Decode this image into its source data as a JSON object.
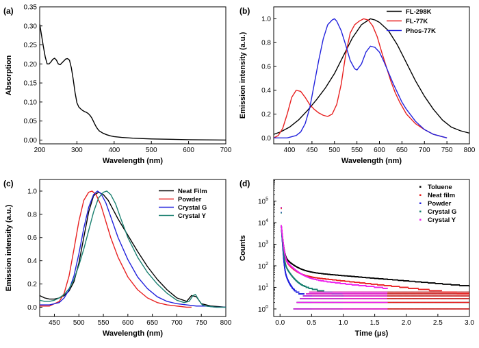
{
  "chart_data": [
    {
      "panel_label": "(a)",
      "type": "line",
      "xlabel": "Wavelength (nm)",
      "ylabel": "Absorption",
      "xlim": [
        200,
        700
      ],
      "ylim": [
        -0.01,
        0.35
      ],
      "xticks": [
        200,
        300,
        400,
        500,
        600,
        700
      ],
      "yticks": [
        0.0,
        0.05,
        0.1,
        0.15,
        0.2,
        0.25,
        0.3,
        0.35
      ],
      "ytick_labels": [
        "0.00",
        "0.05",
        "0.10",
        "0.15",
        "0.20",
        "0.25",
        "0.30",
        "0.35"
      ],
      "legend": null,
      "series": [
        {
          "color": "#000000",
          "x": [
            200,
            205,
            210,
            215,
            220,
            225,
            230,
            235,
            240,
            245,
            250,
            255,
            260,
            265,
            270,
            275,
            280,
            285,
            290,
            295,
            300,
            305,
            310,
            315,
            320,
            325,
            330,
            335,
            340,
            345,
            350,
            355,
            360,
            370,
            380,
            390,
            400,
            420,
            450,
            500,
            550,
            600,
            650,
            700
          ],
          "y": [
            0.305,
            0.275,
            0.245,
            0.218,
            0.2,
            0.2,
            0.205,
            0.212,
            0.215,
            0.21,
            0.2,
            0.198,
            0.203,
            0.208,
            0.213,
            0.214,
            0.21,
            0.19,
            0.16,
            0.125,
            0.098,
            0.087,
            0.082,
            0.078,
            0.075,
            0.073,
            0.07,
            0.065,
            0.058,
            0.048,
            0.038,
            0.03,
            0.024,
            0.018,
            0.014,
            0.011,
            0.009,
            0.007,
            0.005,
            0.003,
            0.002,
            0.001,
            0.0005,
            0.0
          ]
        }
      ]
    },
    {
      "panel_label": "(b)",
      "type": "line",
      "xlabel": "Wavelength (nm)",
      "ylabel": "Emission intensity (a.u.)",
      "xlim": [
        365,
        800
      ],
      "ylim": [
        -0.05,
        1.1
      ],
      "xticks": [
        400,
        450,
        500,
        550,
        600,
        650,
        700,
        750,
        800
      ],
      "yticks": [
        0.0,
        0.2,
        0.4,
        0.6,
        0.8,
        1.0
      ],
      "ytick_labels": [
        "0.0",
        "0.2",
        "0.4",
        "0.6",
        "0.8",
        "1.0"
      ],
      "legend": "top-right",
      "series": [
        {
          "name": "FL-298K",
          "color": "#000000",
          "x": [
            365,
            380,
            400,
            420,
            440,
            460,
            480,
            500,
            520,
            540,
            560,
            580,
            590,
            600,
            620,
            640,
            660,
            680,
            700,
            720,
            740,
            760,
            780,
            800
          ],
          "y": [
            0.03,
            0.05,
            0.09,
            0.15,
            0.23,
            0.32,
            0.42,
            0.54,
            0.69,
            0.84,
            0.95,
            1.0,
            0.99,
            0.97,
            0.9,
            0.78,
            0.63,
            0.48,
            0.35,
            0.24,
            0.15,
            0.09,
            0.06,
            0.04
          ]
        },
        {
          "name": "FL-77K",
          "color": "#e82020",
          "x": [
            365,
            375,
            385,
            395,
            405,
            415,
            425,
            435,
            445,
            455,
            465,
            475,
            485,
            495,
            505,
            515,
            525,
            535,
            545,
            555,
            565,
            575,
            585,
            595,
            605,
            615,
            625,
            635,
            645,
            660,
            680,
            700,
            720,
            740,
            750
          ],
          "y": [
            0.0,
            0.02,
            0.08,
            0.2,
            0.34,
            0.4,
            0.39,
            0.34,
            0.28,
            0.24,
            0.21,
            0.19,
            0.18,
            0.2,
            0.28,
            0.45,
            0.7,
            0.88,
            0.95,
            0.98,
            1.0,
            0.99,
            0.94,
            0.85,
            0.72,
            0.6,
            0.48,
            0.38,
            0.3,
            0.2,
            0.12,
            0.07,
            0.03,
            0.01,
            0.0
          ]
        },
        {
          "name": "Phos-77K",
          "color": "#2222dd",
          "x": [
            365,
            395,
            415,
            425,
            435,
            445,
            455,
            465,
            475,
            485,
            495,
            500,
            505,
            515,
            525,
            535,
            545,
            550,
            560,
            570,
            580,
            590,
            600,
            610,
            620,
            630,
            640,
            650,
            660,
            680,
            700,
            720,
            740,
            750
          ],
          "y": [
            0.0,
            0.0,
            0.02,
            0.05,
            0.12,
            0.25,
            0.45,
            0.65,
            0.83,
            0.95,
            0.99,
            1.0,
            0.98,
            0.9,
            0.78,
            0.65,
            0.58,
            0.57,
            0.62,
            0.72,
            0.77,
            0.76,
            0.72,
            0.64,
            0.55,
            0.46,
            0.38,
            0.3,
            0.24,
            0.14,
            0.07,
            0.03,
            0.01,
            0.0
          ]
        }
      ]
    },
    {
      "panel_label": "(c)",
      "type": "line",
      "xlabel": "Wavelength (nm)",
      "ylabel": "Emission intensity (a.u.)",
      "xlim": [
        420,
        800
      ],
      "ylim": [
        -0.08,
        1.1
      ],
      "xticks": [
        450,
        500,
        550,
        600,
        650,
        700,
        750,
        800
      ],
      "yticks": [
        0.0,
        0.2,
        0.4,
        0.6,
        0.8,
        1.0
      ],
      "ytick_labels": [
        "0.0",
        "0.2",
        "0.4",
        "0.6",
        "0.8",
        "1.0"
      ],
      "legend": "top-right",
      "series": [
        {
          "name": "Neat Film",
          "color": "#000000",
          "x": [
            420,
            430,
            440,
            450,
            460,
            470,
            480,
            490,
            500,
            510,
            520,
            530,
            540,
            550,
            560,
            570,
            580,
            590,
            600,
            620,
            640,
            660,
            680,
            700,
            720,
            730,
            740,
            750,
            770,
            800
          ],
          "y": [
            0.1,
            0.08,
            0.07,
            0.07,
            0.08,
            0.1,
            0.14,
            0.22,
            0.38,
            0.6,
            0.82,
            0.96,
            0.99,
            0.97,
            0.92,
            0.84,
            0.76,
            0.69,
            0.62,
            0.48,
            0.35,
            0.24,
            0.15,
            0.08,
            0.05,
            0.1,
            0.09,
            0.03,
            0.01,
            0.0
          ]
        },
        {
          "name": "Powder",
          "color": "#e82020",
          "x": [
            420,
            440,
            460,
            470,
            480,
            490,
            500,
            510,
            520,
            527,
            535,
            545,
            555,
            565,
            580,
            600,
            620,
            640,
            660,
            680,
            700,
            720,
            730
          ],
          "y": [
            0.01,
            0.01,
            0.05,
            0.12,
            0.27,
            0.5,
            0.74,
            0.92,
            0.99,
            1.0,
            0.97,
            0.88,
            0.74,
            0.6,
            0.43,
            0.26,
            0.15,
            0.08,
            0.04,
            0.02,
            0.01,
            0.0,
            0.0
          ]
        },
        {
          "name": "Crystal G",
          "color": "#2222dd",
          "x": [
            420,
            440,
            460,
            470,
            480,
            490,
            500,
            510,
            520,
            530,
            538,
            545,
            555,
            565,
            580,
            600,
            620,
            640,
            660,
            680,
            700,
            720,
            740,
            760,
            780,
            800
          ],
          "y": [
            0.02,
            0.02,
            0.04,
            0.08,
            0.15,
            0.27,
            0.46,
            0.68,
            0.86,
            0.97,
            1.0,
            0.98,
            0.9,
            0.78,
            0.6,
            0.41,
            0.26,
            0.16,
            0.09,
            0.05,
            0.03,
            0.02,
            0.01,
            0.01,
            0.0,
            0.0
          ]
        },
        {
          "name": "Crystal Y",
          "color": "#1a8070",
          "x": [
            420,
            430,
            440,
            450,
            460,
            470,
            480,
            490,
            500,
            510,
            520,
            530,
            540,
            550,
            557,
            565,
            575,
            585,
            600,
            620,
            640,
            660,
            680,
            700,
            715,
            725,
            733,
            738,
            745,
            752,
            760,
            780,
            800
          ],
          "y": [
            0.06,
            0.05,
            0.05,
            0.06,
            0.08,
            0.11,
            0.16,
            0.24,
            0.36,
            0.5,
            0.66,
            0.82,
            0.94,
            0.99,
            1.0,
            0.97,
            0.89,
            0.77,
            0.6,
            0.43,
            0.3,
            0.2,
            0.12,
            0.06,
            0.04,
            0.05,
            0.1,
            0.11,
            0.06,
            0.02,
            0.01,
            0.0,
            0.0
          ]
        }
      ]
    },
    {
      "panel_label": "(d)",
      "type": "scatter",
      "xlabel": "Time (μs)",
      "ylabel": "Counts",
      "xlim": [
        -0.1,
        3.0
      ],
      "ylim_log10": [
        -0.35,
        6.0
      ],
      "log_y": true,
      "xticks": [
        0.0,
        0.5,
        1.0,
        1.5,
        2.0,
        2.5,
        3.0
      ],
      "xtick_labels": [
        "0.0",
        "0.5",
        "1.0",
        "1.5",
        "2.0",
        "2.5",
        "3.0"
      ],
      "ytick_exponents": [
        0,
        1,
        2,
        3,
        4,
        5
      ],
      "ytick_base": "10",
      "legend": "top-right",
      "series": [
        {
          "name": "Toluene",
          "color": "#000000",
          "decay": {
            "x0": 0.02,
            "x_end": 3.0,
            "peak": 50000,
            "amps": [
              7000,
              280,
              60
            ],
            "taus": [
              0.015,
              0.12,
              1.8
            ]
          }
        },
        {
          "name": "Neat film",
          "color": "#e82020",
          "decay": {
            "x0": 0.02,
            "x_end": 3.0,
            "peak": 45000,
            "amps": [
              7000,
              240,
              40
            ],
            "taus": [
              0.015,
              0.1,
              1.4
            ]
          }
        },
        {
          "name": "Powder",
          "color": "#2222dd",
          "decay": {
            "x0": 0.02,
            "x_end": 0.5,
            "peak": 30000,
            "amps": [
              7000,
              120,
              8
            ],
            "taus": [
              0.01,
              0.05,
              0.6
            ]
          }
        },
        {
          "name": "Crystal G",
          "color": "#1a8070",
          "decay": {
            "x0": 0.02,
            "x_end": 1.0,
            "peak": 28000,
            "amps": [
              7000,
              180,
              15
            ],
            "taus": [
              0.012,
              0.08,
              0.8
            ]
          }
        },
        {
          "name": "Crystal Y",
          "color": "#ee22ee",
          "decay": {
            "x0": 0.02,
            "x_end": 1.7,
            "peak": 50000,
            "amps": [
              7000,
              250,
              30
            ],
            "taus": [
              0.015,
              0.12,
              1.4
            ]
          }
        }
      ]
    }
  ]
}
